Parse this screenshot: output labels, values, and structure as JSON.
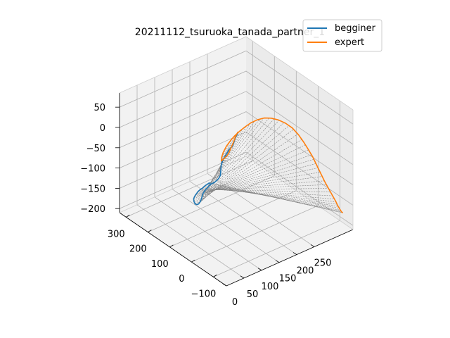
{
  "chart_data": {
    "type": "line",
    "projection": "3d",
    "title": "20211112_tsuruoka_tanada_partner_1",
    "xlabel": "",
    "ylabel": "",
    "zlabel": "",
    "xlim": [
      -160,
      330
    ],
    "ylim": [
      0,
      360
    ],
    "zlim": [
      -210,
      85
    ],
    "x_ticks": [
      "−100",
      "0",
      "100",
      "200",
      "300"
    ],
    "y_ticks": [
      "0",
      "50",
      "100",
      "150",
      "200",
      "250"
    ],
    "z_ticks": [
      "50",
      "0",
      "−50",
      "−100",
      "−150",
      "−200"
    ],
    "x_tick_values": [
      -100,
      0,
      100,
      200,
      300
    ],
    "y_tick_values": [
      0,
      50,
      100,
      150,
      200,
      250
    ],
    "z_tick_values": [
      50,
      0,
      -50,
      -100,
      -150,
      -200
    ],
    "grid": true,
    "legend_position": "top-right",
    "connector_color": "#808080",
    "series": [
      {
        "name": "begginer",
        "color": "#1f77b4",
        "points": [
          [
            -20,
            120,
            70
          ],
          [
            -5,
            125,
            55
          ],
          [
            10,
            130,
            40
          ],
          [
            25,
            135,
            20
          ],
          [
            40,
            140,
            5
          ],
          [
            60,
            145,
            -10
          ],
          [
            80,
            150,
            -30
          ],
          [
            100,
            155,
            -50
          ],
          [
            115,
            160,
            -65
          ],
          [
            125,
            162,
            -80
          ],
          [
            130,
            164,
            -95
          ],
          [
            135,
            166,
            -110
          ],
          [
            142,
            166,
            -120
          ],
          [
            150,
            165,
            -128
          ],
          [
            158,
            163,
            -135
          ],
          [
            166,
            160,
            -140
          ],
          [
            173,
            157,
            -147
          ],
          [
            180,
            155,
            -155
          ],
          [
            186,
            153,
            -162
          ],
          [
            190,
            150,
            -170
          ],
          [
            192,
            148,
            -180
          ],
          [
            193,
            145,
            -188
          ],
          [
            193,
            140,
            -192
          ],
          [
            193,
            135,
            -192
          ],
          [
            193,
            130,
            -188
          ],
          [
            192,
            126,
            -180
          ],
          [
            190,
            124,
            -172
          ],
          [
            186,
            124,
            -165
          ],
          [
            182,
            124,
            -160
          ],
          [
            178,
            125,
            -155
          ],
          [
            174,
            125,
            -150
          ],
          [
            170,
            126,
            -146
          ],
          [
            166,
            127,
            -142
          ],
          [
            162,
            128,
            -139
          ],
          [
            158,
            129,
            -136
          ],
          [
            154,
            130,
            -132
          ],
          [
            150,
            132,
            -128
          ],
          [
            145,
            134,
            -124
          ],
          [
            140,
            136,
            -120
          ],
          [
            135,
            138,
            -118
          ]
        ]
      },
      {
        "name": "expert",
        "color": "#ff7f0e",
        "points": [
          [
            -20,
            120,
            72
          ],
          [
            -5,
            125,
            58
          ],
          [
            10,
            130,
            42
          ],
          [
            25,
            135,
            24
          ],
          [
            40,
            140,
            8
          ],
          [
            55,
            145,
            -8
          ],
          [
            70,
            150,
            -24
          ],
          [
            85,
            155,
            -38
          ],
          [
            100,
            158,
            -50
          ],
          [
            112,
            160,
            -60
          ],
          [
            120,
            162,
            -66
          ],
          [
            126,
            163,
            -70
          ],
          [
            130,
            166,
            -65
          ],
          [
            132,
            172,
            -55
          ],
          [
            130,
            180,
            -42
          ],
          [
            125,
            188,
            -30
          ],
          [
            118,
            196,
            -18
          ],
          [
            108,
            204,
            -6
          ],
          [
            96,
            212,
            6
          ],
          [
            82,
            220,
            18
          ],
          [
            66,
            228,
            28
          ],
          [
            48,
            236,
            36
          ],
          [
            28,
            244,
            40
          ],
          [
            8,
            252,
            40
          ],
          [
            -12,
            260,
            36
          ],
          [
            -30,
            268,
            28
          ],
          [
            -46,
            276,
            14
          ],
          [
            -58,
            284,
            -4
          ],
          [
            -66,
            292,
            -22
          ],
          [
            -72,
            300,
            -40
          ],
          [
            -76,
            306,
            -56
          ],
          [
            -80,
            312,
            -72
          ],
          [
            -84,
            318,
            -88
          ],
          [
            -88,
            324,
            -104
          ],
          [
            -92,
            330,
            -118
          ],
          [
            -96,
            336,
            -132
          ],
          [
            -100,
            342,
            -146
          ],
          [
            -104,
            346,
            -156
          ],
          [
            -108,
            348,
            -164
          ],
          [
            -112,
            350,
            -170
          ],
          [
            -116,
            352,
            -176
          ],
          [
            -118,
            354,
            -180
          ],
          [
            -120,
            356,
            -182
          ]
        ]
      }
    ]
  }
}
